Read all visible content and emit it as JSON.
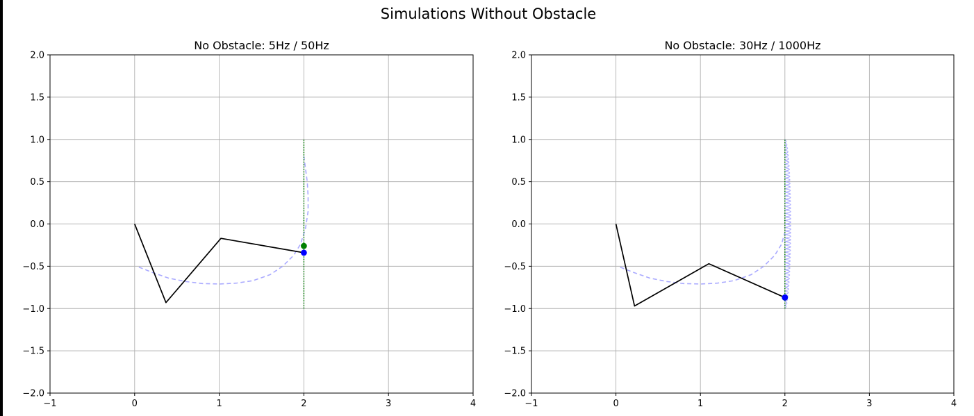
{
  "figure": {
    "suptitle": "Simulations Without Obstacle"
  },
  "chart_data": [
    {
      "type": "line",
      "title": "No Obstacle: 5Hz / 50Hz",
      "xlabel": "",
      "ylabel": "",
      "xlim": [
        -1,
        4
      ],
      "ylim": [
        -2,
        2
      ],
      "xticks": [
        -1,
        0,
        1,
        2,
        3,
        4
      ],
      "yticks": [
        -2.0,
        -1.5,
        -1.0,
        -0.5,
        0.0,
        0.5,
        1.0,
        1.5,
        2.0
      ],
      "xtick_labels": [
        "−1",
        "0",
        "1",
        "2",
        "3",
        "4"
      ],
      "ytick_labels": [
        "−2.0",
        "−1.5",
        "−1.0",
        "−0.5",
        "0.0",
        "0.5",
        "1.0",
        "1.5",
        "2.0"
      ],
      "grid": true,
      "colors": {
        "arm": "#000000",
        "target_path": "#008000",
        "trace": "#aaaaff",
        "goal": "#008000",
        "effector": "#0000ff"
      },
      "series": [
        {
          "style": "dashed",
          "color": "#aaaaff",
          "points": [
            [
              0.05,
              -0.51
            ],
            [
              0.2,
              -0.57
            ],
            [
              0.4,
              -0.64
            ],
            [
              0.6,
              -0.68
            ],
            [
              0.8,
              -0.705
            ],
            [
              1.0,
              -0.71
            ],
            [
              1.2,
              -0.7
            ],
            [
              1.4,
              -0.67
            ],
            [
              1.6,
              -0.6
            ],
            [
              1.75,
              -0.5
            ],
            [
              1.88,
              -0.37
            ],
            [
              1.96,
              -0.24
            ],
            [
              2.02,
              -0.05
            ],
            [
              2.05,
              0.15
            ],
            [
              2.05,
              0.33
            ],
            [
              2.04,
              0.5
            ],
            [
              2.02,
              0.65
            ],
            [
              2.0,
              0.8
            ]
          ]
        },
        {
          "style": "dotted",
          "color": "#008000",
          "points": [
            [
              2.0,
              -1.0
            ],
            [
              2.0,
              1.0
            ]
          ]
        },
        {
          "style": "solid",
          "color": "#000000",
          "points": [
            [
              0.0,
              0.0
            ],
            [
              0.37,
              -0.93
            ],
            [
              1.02,
              -0.17
            ],
            [
              2.0,
              -0.34
            ]
          ]
        }
      ],
      "markers": [
        {
          "color": "#008000",
          "x": 2.0,
          "y": -0.26
        },
        {
          "color": "#0000ff",
          "x": 2.0,
          "y": -0.34
        }
      ]
    },
    {
      "type": "line",
      "title": "No Obstacle: 30Hz / 1000Hz",
      "xlabel": "",
      "ylabel": "",
      "xlim": [
        -1,
        4
      ],
      "ylim": [
        -2,
        2
      ],
      "xticks": [
        -1,
        0,
        1,
        2,
        3,
        4
      ],
      "yticks": [
        -2.0,
        -1.5,
        -1.0,
        -0.5,
        0.0,
        0.5,
        1.0,
        1.5,
        2.0
      ],
      "xtick_labels": [
        "−1",
        "0",
        "1",
        "2",
        "3",
        "4"
      ],
      "ytick_labels": [
        "−2.0",
        "−1.5",
        "−1.0",
        "−0.5",
        "0.0",
        "0.5",
        "1.0",
        "1.5",
        "2.0"
      ],
      "grid": true,
      "colors": {
        "arm": "#000000",
        "target_path": "#008000",
        "trace": "#aaaaff",
        "goal": "#008000",
        "effector": "#0000ff"
      },
      "series": [
        {
          "style": "dashed",
          "color": "#aaaaff",
          "points": [
            [
              0.05,
              -0.51
            ],
            [
              0.2,
              -0.57
            ],
            [
              0.4,
              -0.64
            ],
            [
              0.6,
              -0.68
            ],
            [
              0.8,
              -0.705
            ],
            [
              1.0,
              -0.71
            ],
            [
              1.2,
              -0.7
            ],
            [
              1.4,
              -0.67
            ],
            [
              1.6,
              -0.6
            ],
            [
              1.75,
              -0.5
            ],
            [
              1.88,
              -0.37
            ],
            [
              1.96,
              -0.24
            ],
            [
              2.0,
              -0.1
            ]
          ]
        },
        {
          "style": "oscillation",
          "color": "#aaaaff",
          "y_range": [
            -1.0,
            1.0
          ],
          "amplitude_max": 0.07,
          "cycles": 24
        },
        {
          "style": "dotted",
          "color": "#008000",
          "points": [
            [
              2.0,
              -1.0
            ],
            [
              2.0,
              1.0
            ]
          ]
        },
        {
          "style": "solid",
          "color": "#000000",
          "points": [
            [
              0.0,
              0.0
            ],
            [
              0.22,
              -0.97
            ],
            [
              1.1,
              -0.47
            ],
            [
              2.0,
              -0.87
            ]
          ]
        }
      ],
      "markers": [
        {
          "color": "#008000",
          "x": 2.0,
          "y": -0.87
        },
        {
          "color": "#0000ff",
          "x": 2.0,
          "y": -0.87
        }
      ]
    }
  ]
}
